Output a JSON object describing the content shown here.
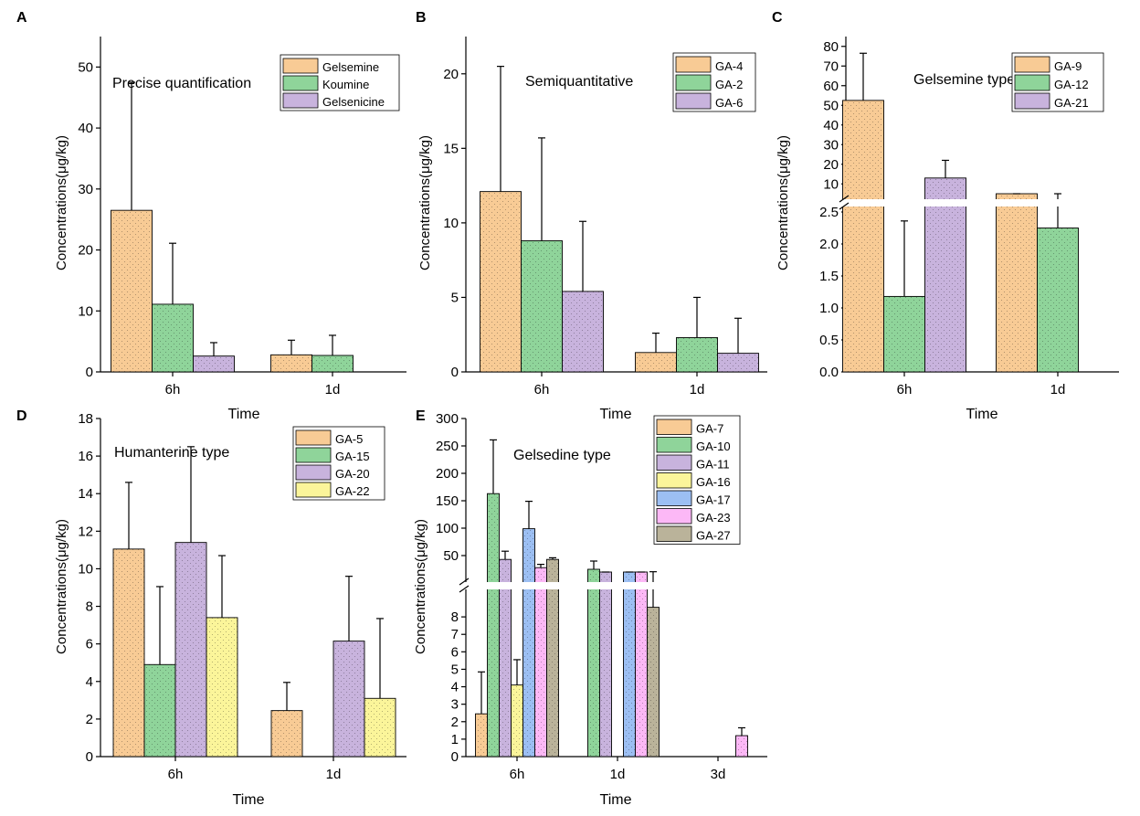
{
  "chart_data": [
    {
      "panel": "A",
      "type": "bar",
      "title": "Precise quantification",
      "xlabel": "Time",
      "ylabel": "Concentrations(μg/kg)",
      "categories": [
        "6h",
        "1d"
      ],
      "ylim": [
        0,
        55
      ],
      "yticks": [
        0,
        10,
        20,
        30,
        40,
        50
      ],
      "series": [
        {
          "name": "Gelsemine",
          "color": "#f8cb95",
          "values": [
            26.5,
            2.8
          ],
          "errors": [
            21.0,
            2.4
          ]
        },
        {
          "name": "Koumine",
          "color": "#8fd49a",
          "values": [
            11.1,
            2.7
          ],
          "errors": [
            10.0,
            3.3
          ]
        },
        {
          "name": "Gelsenicine",
          "color": "#c8b3dd",
          "values": [
            2.6,
            null
          ],
          "errors": [
            2.2,
            null
          ]
        }
      ]
    },
    {
      "panel": "B",
      "type": "bar",
      "title": "Semiquantitative",
      "xlabel": "Time",
      "ylabel": "Concentrations(μg/kg)",
      "categories": [
        "6h",
        "1d"
      ],
      "ylim": [
        0,
        22.5
      ],
      "yticks": [
        0,
        5,
        10,
        15,
        20
      ],
      "series": [
        {
          "name": "GA-4",
          "color": "#f8cb95",
          "values": [
            12.1,
            1.3
          ],
          "errors": [
            8.4,
            1.3
          ]
        },
        {
          "name": "GA-2",
          "color": "#8fd49a",
          "values": [
            8.8,
            2.3
          ],
          "errors": [
            6.9,
            2.7
          ]
        },
        {
          "name": "GA-6",
          "color": "#c8b3dd",
          "values": [
            5.4,
            1.25
          ],
          "errors": [
            4.7,
            2.35
          ]
        }
      ]
    },
    {
      "panel": "C",
      "type": "bar",
      "title": "Gelsemine type",
      "xlabel": "Time",
      "ylabel": "Concentrations(μg/kg)",
      "categories": [
        "6h",
        "1d"
      ],
      "axis_break": {
        "lower_range": [
          0,
          2.5
        ],
        "upper_range": [
          5,
          85
        ]
      },
      "yticks_lower": [
        "0.0",
        "0.5",
        "1.0",
        "1.5",
        "2.0",
        "2.5"
      ],
      "yticks_upper": [
        "10",
        "20",
        "30",
        "40",
        "50",
        "60",
        "70",
        "80"
      ],
      "series": [
        {
          "name": "GA-9",
          "color": "#f8cb95",
          "values": [
            52.5,
            2.58
          ],
          "errors": [
            24.0,
            0.15
          ]
        },
        {
          "name": "GA-12",
          "color": "#8fd49a",
          "values": [
            1.18,
            2.25
          ],
          "errors": [
            1.18,
            0.45
          ]
        },
        {
          "name": "GA-21",
          "color": "#c8b3dd",
          "values": [
            13.0,
            null
          ],
          "errors": [
            9.0,
            null
          ]
        }
      ]
    },
    {
      "panel": "D",
      "type": "bar",
      "title": "Humanterine type",
      "xlabel": "Time",
      "ylabel": "Concentrations(μg/kg)",
      "categories": [
        "6h",
        "1d"
      ],
      "ylim": [
        0,
        18
      ],
      "yticks": [
        0,
        2,
        4,
        6,
        8,
        10,
        12,
        14,
        16,
        18
      ],
      "series": [
        {
          "name": "GA-5",
          "color": "#f8cb95",
          "values": [
            11.05,
            2.45
          ],
          "errors": [
            3.55,
            1.5
          ]
        },
        {
          "name": "GA-15",
          "color": "#8fd49a",
          "values": [
            4.9,
            null
          ],
          "errors": [
            4.15,
            null
          ]
        },
        {
          "name": "GA-20",
          "color": "#c8b3dd",
          "values": [
            11.4,
            6.15
          ],
          "errors": [
            5.1,
            3.45
          ]
        },
        {
          "name": "GA-22",
          "color": "#fbf59a",
          "values": [
            7.4,
            3.1
          ],
          "errors": [
            3.3,
            4.25
          ]
        }
      ]
    },
    {
      "panel": "E",
      "type": "bar",
      "title": "Gelsedine type",
      "xlabel": "Time",
      "ylabel": "Concentrations(μg/kg)",
      "categories": [
        "6h",
        "1d",
        "3d"
      ],
      "axis_break": {
        "lower_range": [
          0,
          9
        ],
        "upper_range": [
          20,
          300
        ]
      },
      "yticks_lower": [
        "0",
        "1",
        "2",
        "3",
        "4",
        "5",
        "6",
        "7",
        "8"
      ],
      "yticks_upper": [
        "50",
        "100",
        "150",
        "200",
        "250",
        "300"
      ],
      "series": [
        {
          "name": "GA-7",
          "color": "#f8cb95",
          "values": [
            2.45,
            null,
            null
          ],
          "errors": [
            2.4,
            null,
            null
          ]
        },
        {
          "name": "GA-10",
          "color": "#8fd49a",
          "values": [
            163,
            25,
            null
          ],
          "errors": [
            98,
            15,
            null
          ]
        },
        {
          "name": "GA-11",
          "color": "#c8b3dd",
          "values": [
            43,
            11,
            null
          ],
          "errors": [
            15,
            8,
            null
          ]
        },
        {
          "name": "GA-16",
          "color": "#fbf59a",
          "values": [
            4.1,
            null,
            null
          ],
          "errors": [
            1.45,
            null,
            null
          ]
        },
        {
          "name": "GA-17",
          "color": "#9cbff3",
          "values": [
            99,
            12,
            null
          ],
          "errors": [
            50,
            8,
            null
          ]
        },
        {
          "name": "GA-23",
          "color": "#fcb8f6",
          "values": [
            28,
            10,
            1.2
          ],
          "errors": [
            6,
            7,
            0.45
          ]
        },
        {
          "name": "GA-27",
          "color": "#bab39a",
          "values": [
            43,
            8.55,
            null
          ],
          "errors": [
            3,
            12,
            null
          ]
        }
      ]
    }
  ]
}
